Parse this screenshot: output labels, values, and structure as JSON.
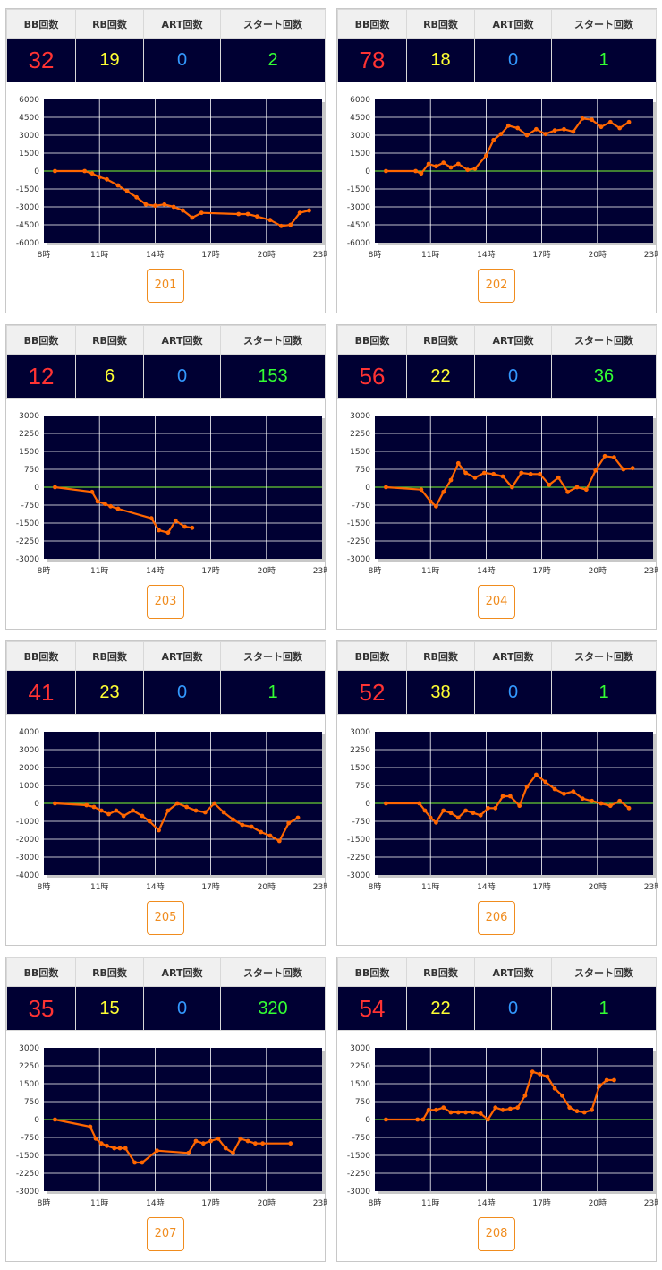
{
  "colors": {
    "plot_bg": "#000033",
    "grid": "#ffffff",
    "zero": "#66cc33",
    "line": "#ff6600",
    "point": "#ff6600",
    "button": "#f08c1e"
  },
  "headers": {
    "bb": "BB回数",
    "rb": "RB回数",
    "art": "ART回数",
    "start": "スタート回数"
  },
  "machines": [
    {
      "id": "201",
      "bb": "32",
      "rb": "19",
      "art": "0",
      "start": "2",
      "button": "201"
    },
    {
      "id": "202",
      "bb": "78",
      "rb": "18",
      "art": "0",
      "start": "1",
      "button": "202"
    },
    {
      "id": "203",
      "bb": "12",
      "rb": "6",
      "art": "0",
      "start": "153",
      "button": "203"
    },
    {
      "id": "204",
      "bb": "56",
      "rb": "22",
      "art": "0",
      "start": "36",
      "button": "204"
    },
    {
      "id": "205",
      "bb": "41",
      "rb": "23",
      "art": "0",
      "start": "1",
      "button": "205"
    },
    {
      "id": "206",
      "bb": "52",
      "rb": "38",
      "art": "0",
      "start": "1",
      "button": "206"
    },
    {
      "id": "207",
      "bb": "35",
      "rb": "15",
      "art": "0",
      "start": "320",
      "button": "207"
    },
    {
      "id": "208",
      "bb": "54",
      "rb": "22",
      "art": "0",
      "start": "1",
      "button": "208"
    }
  ],
  "chart_data": [
    {
      "type": "line",
      "machine": "201",
      "grid": true,
      "xlim": [
        8,
        23
      ],
      "x_ticks": [
        "8時",
        "11時",
        "14時",
        "17時",
        "20時",
        "23時"
      ],
      "ylim": [
        -6000,
        6000
      ],
      "y_ticks": [
        "6000",
        "4500",
        "3000",
        "1500",
        "0",
        "-1500",
        "-3000",
        "-4500",
        "-6000"
      ],
      "series": [
        {
          "x": [
            8.6,
            10.2,
            10.6,
            11.0,
            11.4,
            12.0,
            12.5,
            13.0,
            13.5,
            14.0,
            14.5,
            15.0,
            15.5,
            16.0,
            16.5,
            18.5,
            19.0,
            19.5,
            20.2,
            20.8,
            21.3,
            21.8,
            22.3
          ],
          "y": [
            0,
            0,
            -200,
            -500,
            -700,
            -1200,
            -1700,
            -2200,
            -2800,
            -2900,
            -2800,
            -3000,
            -3300,
            -3900,
            -3500,
            -3600,
            -3600,
            -3800,
            -4100,
            -4600,
            -4500,
            -3500,
            -3300
          ]
        }
      ]
    },
    {
      "type": "line",
      "machine": "202",
      "grid": true,
      "xlim": [
        8,
        23
      ],
      "x_ticks": [
        "8時",
        "11時",
        "14時",
        "17時",
        "20時",
        "23時"
      ],
      "ylim": [
        -6000,
        6000
      ],
      "y_ticks": [
        "6000",
        "4500",
        "3000",
        "1500",
        "0",
        "-1500",
        "-3000",
        "-4500",
        "-6000"
      ],
      "series": [
        {
          "x": [
            8.6,
            10.2,
            10.5,
            10.9,
            11.3,
            11.7,
            12.1,
            12.5,
            13.0,
            13.4,
            14.0,
            14.4,
            14.8,
            15.2,
            15.7,
            16.2,
            16.7,
            17.2,
            17.7,
            18.2,
            18.7,
            19.2,
            19.7,
            20.2,
            20.7,
            21.2,
            21.7
          ],
          "y": [
            0,
            0,
            -200,
            600,
            400,
            700,
            300,
            600,
            100,
            200,
            1300,
            2600,
            3100,
            3800,
            3600,
            3000,
            3500,
            3100,
            3400,
            3500,
            3300,
            4400,
            4300,
            3700,
            4100,
            3600,
            4100
          ]
        }
      ]
    },
    {
      "type": "line",
      "machine": "203",
      "grid": true,
      "xlim": [
        8,
        23
      ],
      "x_ticks": [
        "8時",
        "11時",
        "14時",
        "17時",
        "20時",
        "23時"
      ],
      "ylim": [
        -3000,
        3000
      ],
      "y_ticks": [
        "3000",
        "2250",
        "1500",
        "750",
        "0",
        "-750",
        "-1500",
        "-2250",
        "-3000"
      ],
      "series": [
        {
          "x": [
            8.6,
            10.6,
            10.9,
            11.3,
            11.6,
            12.0,
            13.8,
            14.2,
            14.7,
            15.1,
            15.6,
            16.0
          ],
          "y": [
            0,
            -200,
            -600,
            -700,
            -800,
            -900,
            -1300,
            -1800,
            -1900,
            -1400,
            -1650,
            -1700
          ]
        }
      ]
    },
    {
      "type": "line",
      "machine": "204",
      "grid": true,
      "xlim": [
        8,
        23
      ],
      "x_ticks": [
        "8時",
        "11時",
        "14時",
        "17時",
        "20時",
        "23時"
      ],
      "ylim": [
        -3000,
        3000
      ],
      "y_ticks": [
        "3000",
        "2250",
        "1500",
        "750",
        "0",
        "-750",
        "-1500",
        "-2250",
        "-3000"
      ],
      "series": [
        {
          "x": [
            8.6,
            10.5,
            11.0,
            11.3,
            11.7,
            12.1,
            12.5,
            12.9,
            13.4,
            13.9,
            14.4,
            14.9,
            15.4,
            15.9,
            16.4,
            16.9,
            17.4,
            17.9,
            18.4,
            18.9,
            19.4,
            19.9,
            20.4,
            20.9,
            21.4,
            21.9
          ],
          "y": [
            0,
            -100,
            -600,
            -800,
            -200,
            300,
            1000,
            600,
            400,
            600,
            550,
            450,
            0,
            600,
            550,
            550,
            100,
            400,
            -200,
            0,
            -100,
            700,
            1300,
            1250,
            750,
            800
          ]
        }
      ]
    },
    {
      "type": "line",
      "machine": "205",
      "grid": true,
      "xlim": [
        8,
        23
      ],
      "x_ticks": [
        "8時",
        "11時",
        "14時",
        "17時",
        "20時",
        "23時"
      ],
      "ylim": [
        -4000,
        4000
      ],
      "y_ticks": [
        "4000",
        "3000",
        "2000",
        "1000",
        "0",
        "-1000",
        "-2000",
        "-3000",
        "-4000"
      ],
      "series": [
        {
          "x": [
            8.6,
            10.3,
            10.7,
            11.1,
            11.5,
            11.9,
            12.3,
            12.8,
            13.3,
            13.7,
            14.2,
            14.7,
            15.2,
            15.7,
            16.2,
            16.7,
            17.2,
            17.7,
            18.2,
            18.7,
            19.2,
            19.7,
            20.2,
            20.7,
            21.2,
            21.7
          ],
          "y": [
            0,
            -100,
            -200,
            -400,
            -600,
            -400,
            -700,
            -400,
            -700,
            -1000,
            -1500,
            -400,
            0,
            -200,
            -400,
            -500,
            0,
            -500,
            -900,
            -1200,
            -1300,
            -1600,
            -1800,
            -2100,
            -1100,
            -800
          ]
        }
      ]
    },
    {
      "type": "line",
      "machine": "206",
      "grid": true,
      "xlim": [
        8,
        23
      ],
      "x_ticks": [
        "8時",
        "11時",
        "14時",
        "17時",
        "20時",
        "23時"
      ],
      "ylim": [
        -3000,
        3000
      ],
      "y_ticks": [
        "3000",
        "2250",
        "1500",
        "750",
        "0",
        "-750",
        "-1500",
        "-2250",
        "-3000"
      ],
      "series": [
        {
          "x": [
            8.6,
            10.4,
            10.7,
            11.0,
            11.3,
            11.7,
            12.1,
            12.5,
            12.9,
            13.3,
            13.7,
            14.1,
            14.5,
            14.9,
            15.3,
            15.8,
            16.2,
            16.7,
            17.2,
            17.7,
            18.2,
            18.7,
            19.2,
            19.7,
            20.2,
            20.7,
            21.2,
            21.7
          ],
          "y": [
            0,
            0,
            -300,
            -600,
            -800,
            -300,
            -400,
            -600,
            -300,
            -400,
            -500,
            -200,
            -200,
            300,
            300,
            -100,
            700,
            1200,
            900,
            600,
            400,
            500,
            200,
            100,
            0,
            -100,
            100,
            -200
          ]
        }
      ]
    },
    {
      "type": "line",
      "machine": "207",
      "grid": true,
      "xlim": [
        8,
        23
      ],
      "x_ticks": [
        "8時",
        "11時",
        "14時",
        "17時",
        "20時",
        "23時"
      ],
      "ylim": [
        -3000,
        3000
      ],
      "y_ticks": [
        "3000",
        "2250",
        "1500",
        "750",
        "0",
        "-750",
        "-1500",
        "-2250",
        "-3000"
      ],
      "series": [
        {
          "x": [
            8.6,
            10.5,
            10.8,
            11.1,
            11.4,
            11.8,
            12.1,
            12.4,
            12.9,
            13.3,
            14.1,
            15.8,
            16.2,
            16.6,
            17.0,
            17.4,
            17.8,
            18.2,
            18.6,
            19.0,
            19.4,
            19.8,
            21.3
          ],
          "y": [
            0,
            -300,
            -800,
            -1000,
            -1100,
            -1200,
            -1200,
            -1200,
            -1800,
            -1800,
            -1300,
            -1400,
            -900,
            -1000,
            -900,
            -800,
            -1200,
            -1400,
            -800,
            -900,
            -1000,
            -1000,
            -1000
          ]
        }
      ]
    },
    {
      "type": "line",
      "machine": "208",
      "grid": true,
      "xlim": [
        8,
        23
      ],
      "x_ticks": [
        "8時",
        "11時",
        "14時",
        "17時",
        "20時",
        "23時"
      ],
      "ylim": [
        -3000,
        3000
      ],
      "y_ticks": [
        "3000",
        "2250",
        "1500",
        "750",
        "0",
        "-750",
        "-1500",
        "-2250",
        "-3000"
      ],
      "series": [
        {
          "x": [
            8.6,
            10.3,
            10.6,
            10.9,
            11.3,
            11.7,
            12.1,
            12.5,
            12.9,
            13.3,
            13.7,
            14.1,
            14.5,
            14.9,
            15.3,
            15.7,
            16.1,
            16.5,
            16.9,
            17.3,
            17.7,
            18.1,
            18.5,
            18.9,
            19.3,
            19.7,
            20.1,
            20.5,
            20.9
          ],
          "y": [
            0,
            0,
            0,
            400,
            400,
            500,
            300,
            300,
            300,
            300,
            250,
            0,
            500,
            400,
            450,
            500,
            1000,
            2000,
            1900,
            1800,
            1300,
            1000,
            500,
            350,
            300,
            400,
            1400,
            1650,
            1650
          ]
        }
      ]
    }
  ]
}
